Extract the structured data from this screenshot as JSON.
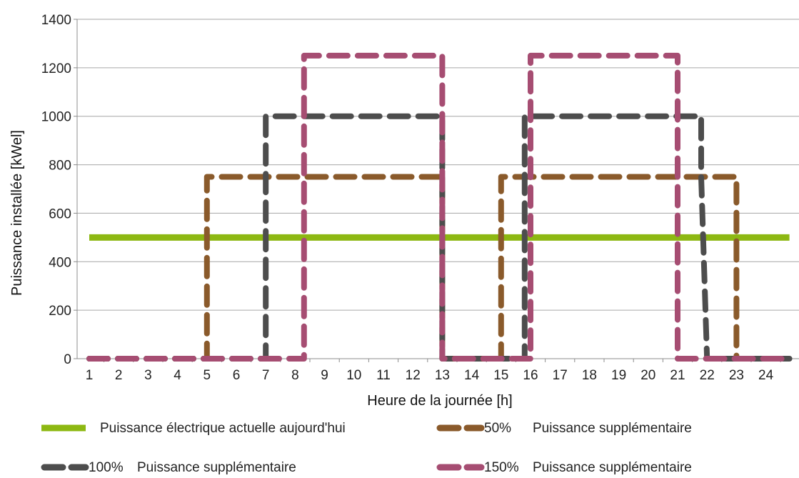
{
  "chart_data": {
    "type": "line",
    "title": "",
    "xlabel": "Heure de la journée [h]",
    "ylabel": "Puissance installée [kWel]",
    "x_ticks": [
      "1",
      "2",
      "3",
      "4",
      "5",
      "6",
      "7",
      "8",
      "9",
      "10",
      "11",
      "12",
      "13",
      "14",
      "15",
      "16",
      "17",
      "18",
      "19",
      "20",
      "21",
      "22",
      "23",
      "24"
    ],
    "y_ticks": [
      "0",
      "200",
      "400",
      "600",
      "800",
      "1000",
      "1200",
      "1400"
    ],
    "xlim": [
      1,
      24.8
    ],
    "ylim": [
      0,
      1400
    ],
    "grid": "horizontal",
    "legend_position": "bottom",
    "series": [
      {
        "name": "Puissance électrique actuelle aujourd'hui",
        "style": "solid",
        "color": "#8db812",
        "points": [
          [
            1,
            500
          ],
          [
            24.8,
            500
          ]
        ]
      },
      {
        "name": "50% Puissance supplémentaire",
        "legend_prefix": "50%",
        "legend_label": "Puissance supplémentaire",
        "style": "dashed",
        "color": "#8a5a2b",
        "points": [
          [
            1,
            0
          ],
          [
            5,
            0
          ],
          [
            5,
            750
          ],
          [
            13,
            750
          ],
          [
            13,
            0
          ],
          [
            15,
            0
          ],
          [
            15,
            750
          ],
          [
            23,
            750
          ],
          [
            23,
            0
          ],
          [
            24.8,
            0
          ]
        ]
      },
      {
        "name": "100% Puissance supplémentaire",
        "legend_prefix": "100%",
        "legend_label": "Puissance supplémentaire",
        "style": "dashed",
        "color": "#4d4d4d",
        "points": [
          [
            1,
            0
          ],
          [
            7,
            0
          ],
          [
            7,
            1000
          ],
          [
            13,
            1000
          ],
          [
            13,
            0
          ],
          [
            15.8,
            0
          ],
          [
            15.8,
            1000
          ],
          [
            21.8,
            1000
          ],
          [
            21.8,
            750
          ],
          [
            22,
            0
          ],
          [
            24.8,
            0
          ]
        ]
      },
      {
        "name": "150% Puissance supplémentaire",
        "legend_prefix": "150%",
        "legend_label": "Puissance supplémentaire",
        "style": "dashed",
        "color": "#a64d72",
        "points": [
          [
            1,
            0
          ],
          [
            8.3,
            0
          ],
          [
            8.3,
            1250
          ],
          [
            13,
            1250
          ],
          [
            13,
            0
          ],
          [
            16,
            0
          ],
          [
            16,
            1250
          ],
          [
            21,
            1250
          ],
          [
            21,
            0
          ],
          [
            24.8,
            0
          ]
        ]
      }
    ]
  }
}
